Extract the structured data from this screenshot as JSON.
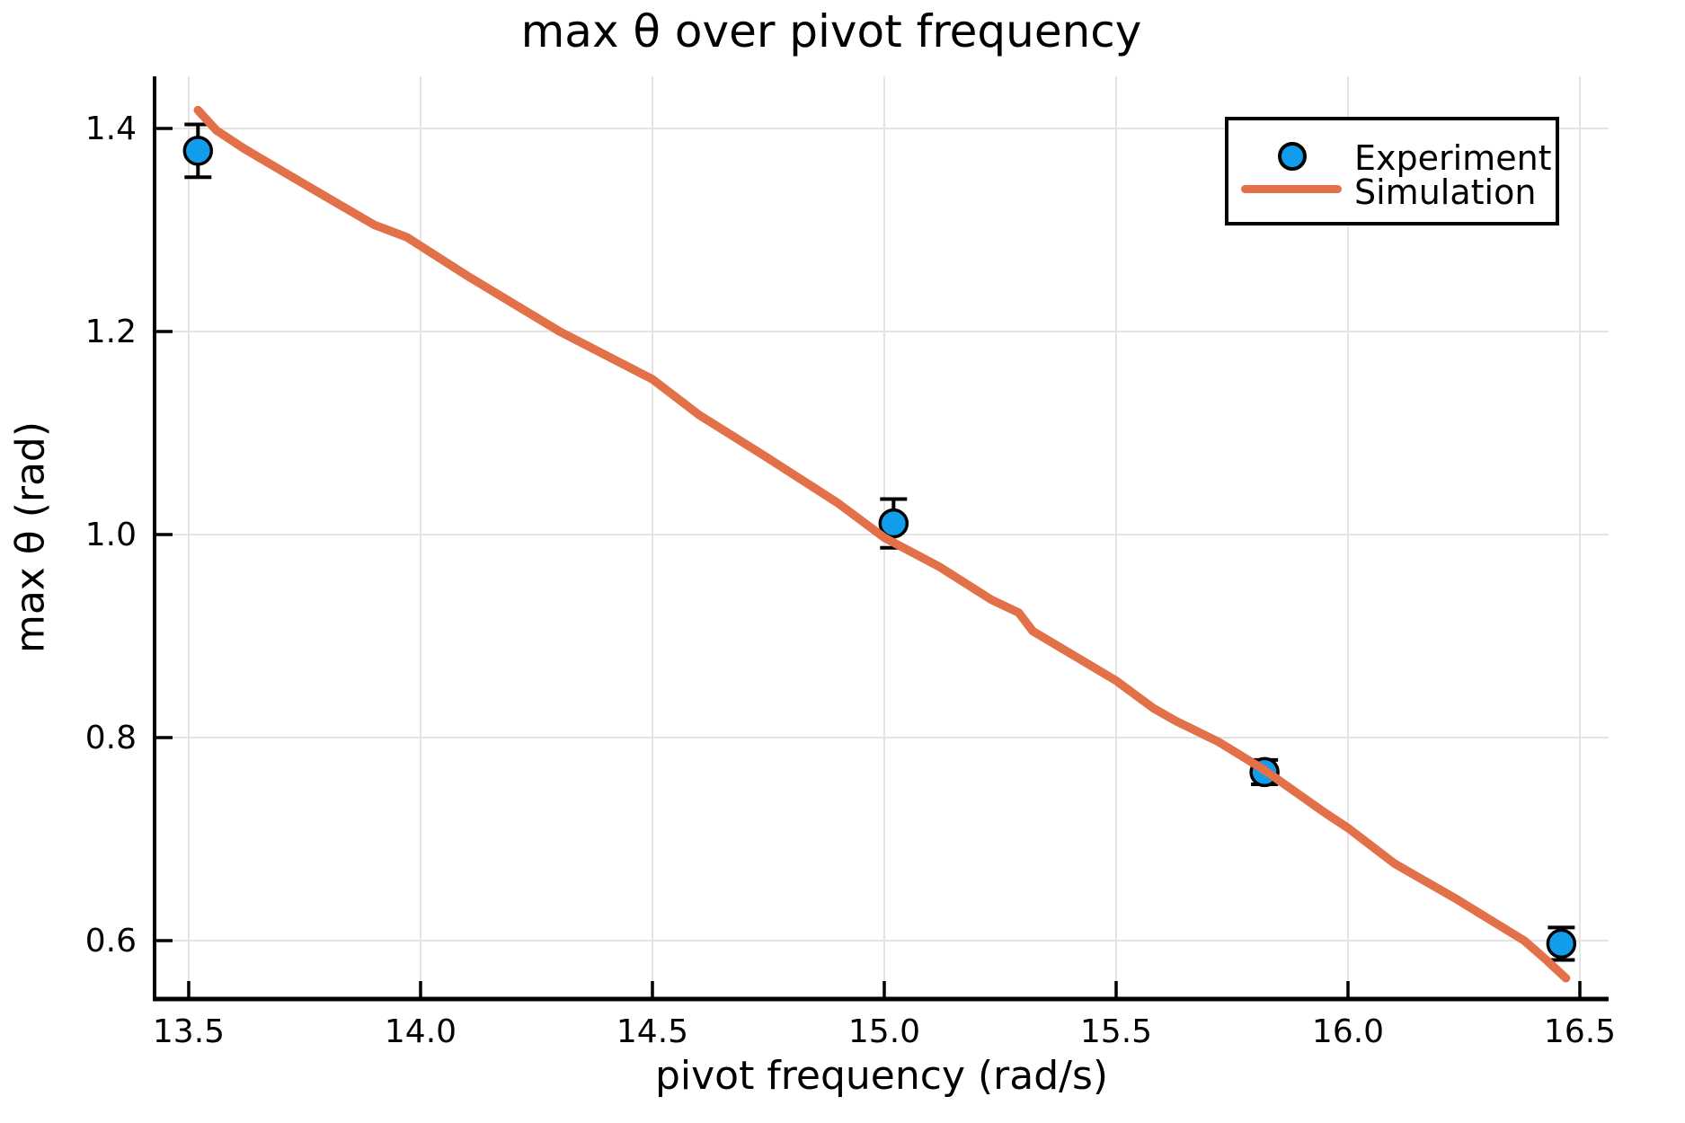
{
  "title": "max θ over pivot frequency",
  "axes": {
    "xlabel": "pivot frequency (rad/s)",
    "ylabel": "max θ (rad)",
    "x_ticks": [
      13.5,
      14.0,
      14.5,
      15.0,
      15.5,
      16.0,
      16.5
    ],
    "x_tick_labels": [
      "13.5",
      "14.0",
      "14.5",
      "15.0",
      "15.5",
      "16.0",
      "16.5"
    ],
    "y_ticks": [
      0.6,
      0.8,
      1.0,
      1.2,
      1.4
    ],
    "y_tick_labels": [
      "0.6",
      "0.8",
      "1.0",
      "1.2",
      "1.4"
    ]
  },
  "legend": {
    "position": "top-right",
    "entries": [
      {
        "label": "Experiment",
        "type": "marker"
      },
      {
        "label": "Simulation",
        "type": "line"
      }
    ]
  },
  "colors": {
    "experiment": "#129DEB",
    "simulation": "#E2714A",
    "grid": "#E4E4E4",
    "axis": "#000000",
    "background": "#FFFFFF"
  },
  "chart_data": {
    "type": "scatter+line",
    "title": "max θ over pivot frequency",
    "xlabel": "pivot frequency (rad/s)",
    "ylabel": "max θ (rad)",
    "xlim": [
      13.4264,
      16.562
    ],
    "ylim": [
      0.5425,
      1.4513
    ],
    "grid": true,
    "legend_position": "top-right",
    "series": [
      {
        "name": "Experiment",
        "type": "scatter",
        "marker": "circle",
        "color": "#129DEB",
        "x": [
          13.52,
          15.02,
          15.82,
          16.46
        ],
        "y": [
          1.378,
          1.011,
          0.766,
          0.597
        ],
        "yerr": [
          0.026,
          0.024,
          0.012,
          0.016
        ]
      },
      {
        "name": "Simulation",
        "type": "line",
        "color": "#E2714A",
        "x": [
          13.52,
          13.56,
          13.62,
          13.75,
          13.9,
          13.97,
          14.1,
          14.3,
          14.5,
          14.6,
          14.75,
          14.9,
          15.0,
          15.12,
          15.23,
          15.29,
          15.32,
          15.5,
          15.58,
          15.63,
          15.72,
          15.82,
          15.95,
          16.0,
          16.1,
          16.23,
          16.28,
          16.38,
          16.43,
          16.47
        ],
        "y": [
          1.418,
          1.398,
          1.38,
          1.345,
          1.305,
          1.293,
          1.255,
          1.2,
          1.153,
          1.118,
          1.075,
          1.031,
          0.997,
          0.968,
          0.936,
          0.923,
          0.905,
          0.856,
          0.829,
          0.816,
          0.796,
          0.768,
          0.726,
          0.711,
          0.676,
          0.642,
          0.628,
          0.6,
          0.58,
          0.563
        ]
      }
    ]
  }
}
